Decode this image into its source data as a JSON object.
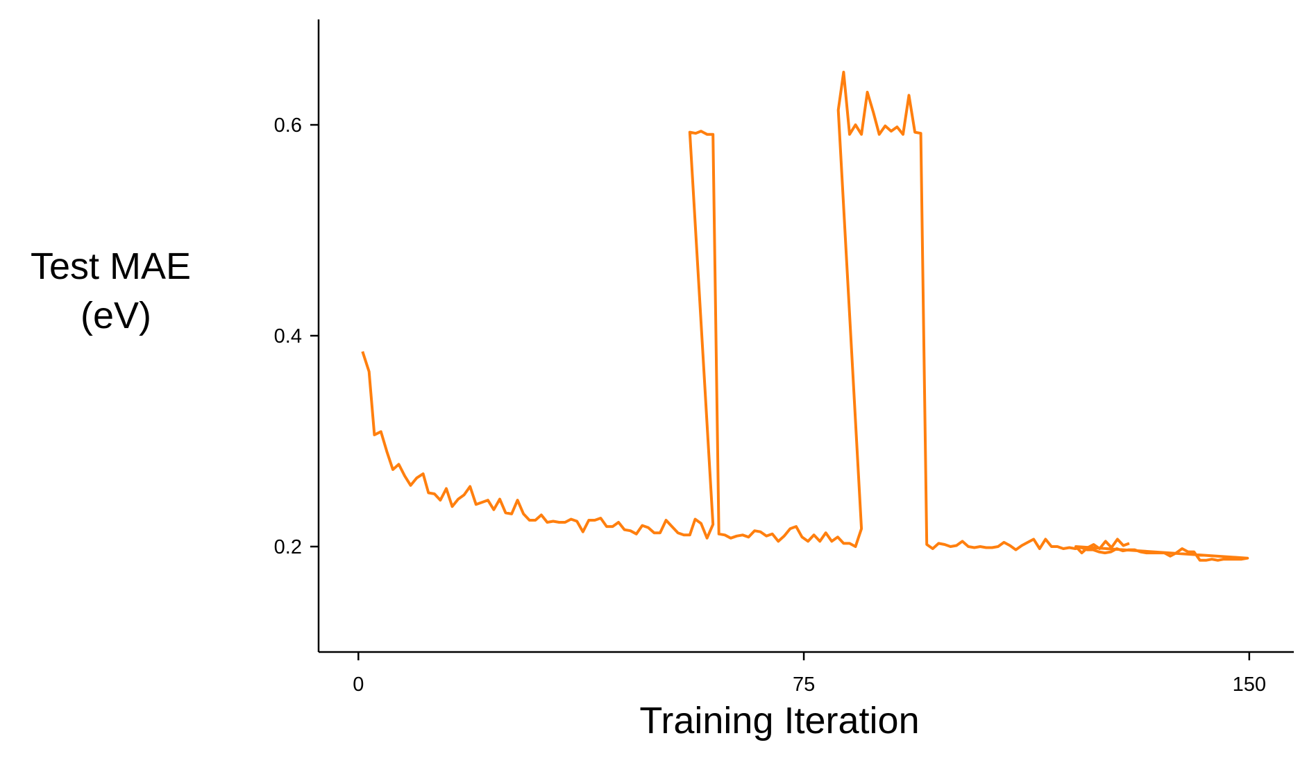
{
  "chart_data": {
    "type": "line",
    "xlabel": "Training Iteration",
    "ylabel_lines": [
      "Test MAE",
      "(eV)"
    ],
    "xlim": [
      -6.7,
      157.5
    ],
    "ylim": [
      0.1,
      0.7
    ],
    "xticks": [
      0,
      75,
      150
    ],
    "xtick_labels": [
      "0",
      "75",
      "150"
    ],
    "yticks": [
      0.2,
      0.4,
      0.6
    ],
    "ytick_labels": [
      "0.2",
      "0.4",
      "0.6"
    ],
    "grid": false,
    "legend": "none",
    "color": "#ff7f0e",
    "series": [
      {
        "points": [
          [
            0.7,
            0.385
          ],
          [
            1.8,
            0.366
          ],
          [
            2.7,
            0.306
          ],
          [
            3.8,
            0.309
          ],
          [
            4.8,
            0.29
          ],
          [
            5.8,
            0.273
          ],
          [
            6.8,
            0.278
          ],
          [
            7.8,
            0.267
          ],
          [
            8.8,
            0.258
          ],
          [
            9.8,
            0.265
          ],
          [
            10.9,
            0.269
          ],
          [
            11.8,
            0.251
          ],
          [
            12.8,
            0.25
          ],
          [
            13.8,
            0.244
          ],
          [
            14.8,
            0.255
          ],
          [
            15.8,
            0.238
          ],
          [
            16.8,
            0.245
          ],
          [
            17.8,
            0.249
          ],
          [
            18.8,
            0.257
          ],
          [
            19.8,
            0.24
          ],
          [
            20.8,
            0.242
          ],
          [
            21.8,
            0.244
          ],
          [
            22.8,
            0.235
          ],
          [
            23.8,
            0.245
          ],
          [
            24.8,
            0.232
          ],
          [
            25.8,
            0.231
          ],
          [
            26.8,
            0.244
          ],
          [
            27.8,
            0.231
          ],
          [
            28.8,
            0.225
          ],
          [
            29.8,
            0.225
          ],
          [
            30.8,
            0.23
          ],
          [
            31.8,
            0.223
          ],
          [
            32.8,
            0.224
          ],
          [
            33.8,
            0.223
          ],
          [
            34.8,
            0.223
          ],
          [
            35.8,
            0.226
          ],
          [
            36.8,
            0.224
          ],
          [
            37.8,
            0.214
          ],
          [
            38.8,
            0.225
          ],
          [
            39.8,
            0.225
          ],
          [
            40.8,
            0.227
          ],
          [
            41.8,
            0.219
          ],
          [
            42.8,
            0.219
          ],
          [
            43.8,
            0.223
          ],
          [
            44.8,
            0.216
          ],
          [
            45.8,
            0.215
          ],
          [
            46.8,
            0.212
          ],
          [
            47.8,
            0.22
          ],
          [
            48.8,
            0.218
          ],
          [
            49.8,
            0.213
          ],
          [
            50.8,
            0.213
          ],
          [
            51.8,
            0.225
          ],
          [
            52.8,
            0.219
          ],
          [
            53.8,
            0.213
          ],
          [
            54.8,
            0.211
          ],
          [
            55.8,
            0.211
          ],
          [
            56.7,
            0.226
          ],
          [
            57.7,
            0.222
          ],
          [
            58.7,
            0.208
          ],
          [
            59.7,
            0.221
          ],
          [
            55.8,
            0.593
          ],
          [
            56.8,
            0.592
          ],
          [
            57.7,
            0.594
          ],
          [
            58.7,
            0.591
          ],
          [
            59.7,
            0.591
          ],
          [
            60.7,
            0.212
          ],
          [
            61.7,
            0.211
          ],
          [
            62.7,
            0.208
          ],
          [
            63.7,
            0.21
          ],
          [
            64.7,
            0.211
          ],
          [
            65.7,
            0.209
          ],
          [
            66.7,
            0.215
          ],
          [
            67.7,
            0.214
          ],
          [
            68.7,
            0.21
          ],
          [
            69.7,
            0.212
          ],
          [
            70.7,
            0.205
          ],
          [
            71.7,
            0.21
          ],
          [
            72.7,
            0.217
          ],
          [
            73.7,
            0.219
          ],
          [
            74.7,
            0.209
          ],
          [
            75.7,
            0.205
          ],
          [
            76.7,
            0.211
          ],
          [
            77.7,
            0.205
          ],
          [
            78.7,
            0.213
          ],
          [
            79.7,
            0.205
          ],
          [
            80.7,
            0.209
          ],
          [
            81.7,
            0.203
          ],
          [
            82.7,
            0.203
          ],
          [
            83.7,
            0.2
          ],
          [
            84.7,
            0.217
          ],
          [
            80.8,
            0.614
          ],
          [
            81.7,
            0.65
          ],
          [
            82.7,
            0.591
          ],
          [
            83.7,
            0.6
          ],
          [
            84.7,
            0.591
          ],
          [
            85.7,
            0.631
          ],
          [
            86.7,
            0.612
          ],
          [
            87.7,
            0.591
          ],
          [
            88.7,
            0.599
          ],
          [
            89.7,
            0.594
          ],
          [
            90.7,
            0.598
          ],
          [
            91.7,
            0.591
          ],
          [
            92.7,
            0.628
          ],
          [
            93.7,
            0.593
          ],
          [
            94.7,
            0.592
          ],
          [
            95.7,
            0.202
          ],
          [
            96.7,
            0.198
          ],
          [
            97.7,
            0.203
          ],
          [
            98.7,
            0.202
          ],
          [
            99.7,
            0.2
          ],
          [
            100.7,
            0.201
          ],
          [
            101.7,
            0.205
          ],
          [
            102.7,
            0.2
          ],
          [
            103.7,
            0.199
          ],
          [
            104.7,
            0.2
          ],
          [
            105.7,
            0.199
          ],
          [
            106.7,
            0.199
          ],
          [
            107.7,
            0.2
          ],
          [
            108.7,
            0.204
          ],
          [
            109.7,
            0.201
          ],
          [
            110.7,
            0.197
          ],
          [
            111.7,
            0.201
          ],
          [
            112.7,
            0.204
          ],
          [
            113.7,
            0.207
          ],
          [
            114.7,
            0.198
          ],
          [
            115.7,
            0.207
          ],
          [
            116.7,
            0.2
          ],
          [
            117.7,
            0.2
          ],
          [
            118.7,
            0.198
          ],
          [
            119.7,
            0.199
          ],
          [
            120.7,
            0.198
          ],
          [
            121.7,
            0.199
          ],
          [
            122.7,
            0.197
          ],
          [
            123.7,
            0.197
          ],
          [
            124.7,
            0.195
          ],
          [
            125.7,
            0.194
          ],
          [
            126.7,
            0.195
          ],
          [
            127.7,
            0.198
          ],
          [
            128.7,
            0.196
          ],
          [
            129.7,
            0.197
          ],
          [
            130.7,
            0.197
          ],
          [
            131.7,
            0.195
          ],
          [
            132.7,
            0.194
          ],
          [
            133.7,
            0.194
          ],
          [
            134.7,
            0.194
          ],
          [
            135.7,
            0.194
          ],
          [
            136.7,
            0.191
          ],
          [
            137.7,
            0.194
          ],
          [
            138.7,
            0.198
          ],
          [
            139.7,
            0.195
          ],
          [
            140.7,
            0.195
          ],
          [
            141.7,
            0.187
          ],
          [
            142.7,
            0.187
          ],
          [
            143.7,
            0.188
          ],
          [
            144.7,
            0.187
          ],
          [
            145.7,
            0.188
          ],
          [
            146.7,
            0.188
          ],
          [
            147.7,
            0.188
          ],
          [
            148.7,
            0.188
          ],
          [
            149.7,
            0.189
          ],
          [
            120.8,
            0.2
          ],
          [
            121.8,
            0.194
          ],
          [
            122.8,
            0.199
          ],
          [
            123.8,
            0.202
          ],
          [
            124.8,
            0.198
          ],
          [
            125.8,
            0.205
          ],
          [
            126.8,
            0.199
          ],
          [
            127.8,
            0.207
          ],
          [
            128.8,
            0.201
          ],
          [
            129.8,
            0.203
          ]
        ]
      }
    ]
  }
}
